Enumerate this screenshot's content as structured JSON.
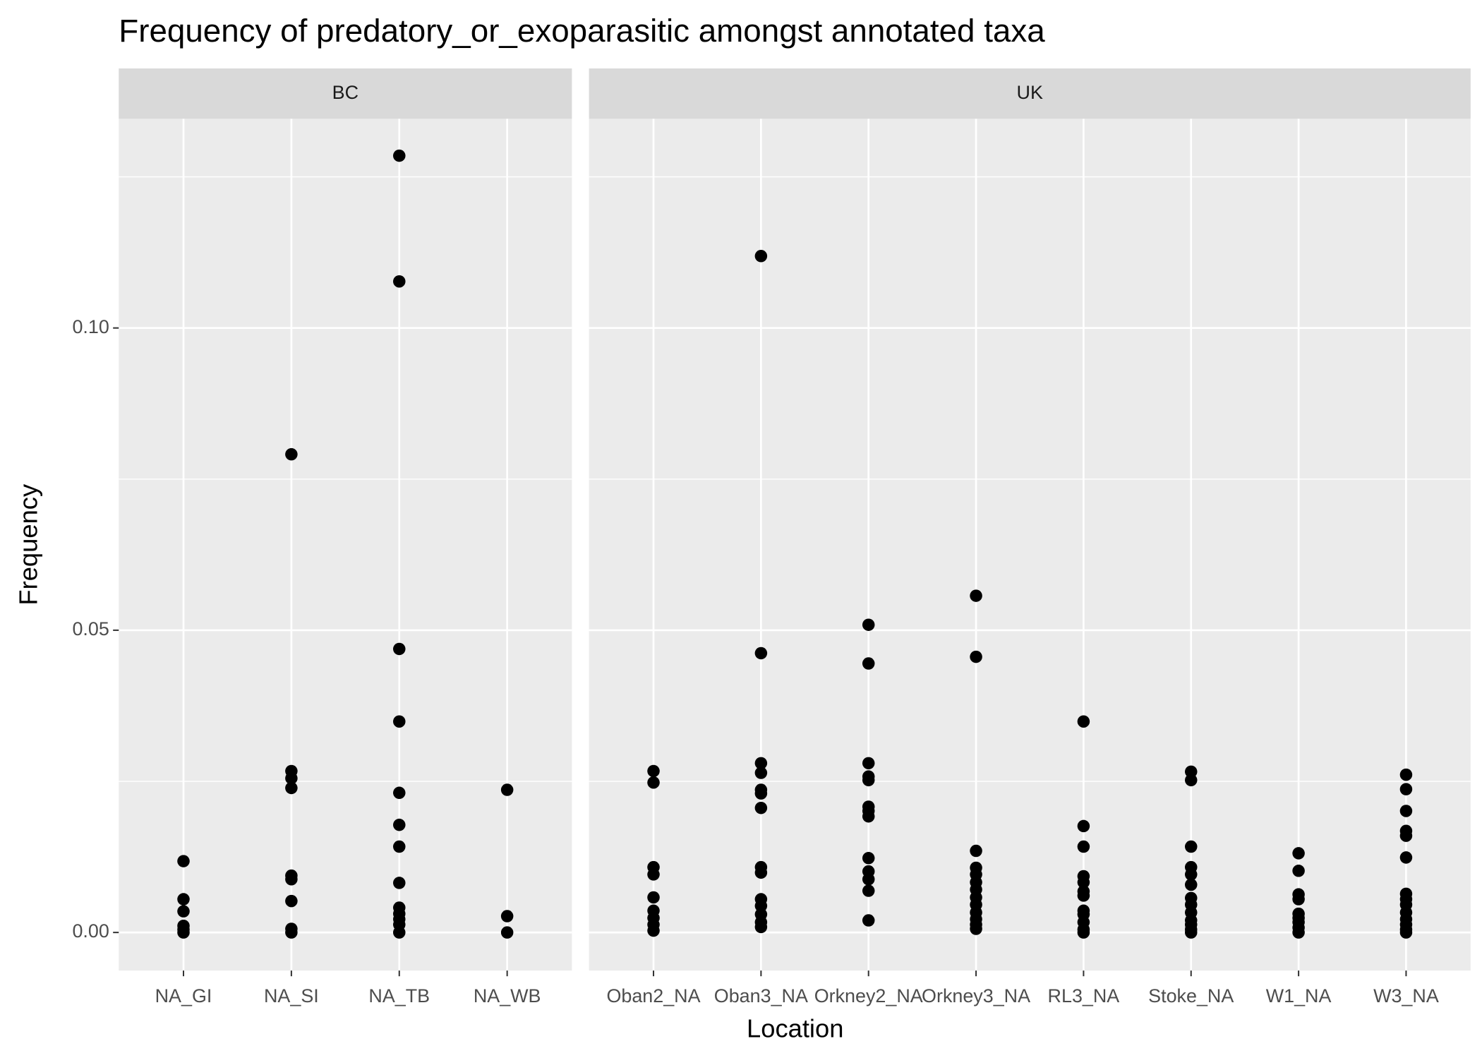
{
  "chart_data": {
    "type": "scatter",
    "title": "Frequency of predatory_or_exoparasitic amongst annotated taxa",
    "xlabel": "Location",
    "ylabel": "Frequency",
    "ylim": [
      -0.0063,
      0.1346
    ],
    "yticks": [
      {
        "value": 0,
        "label": "0.00"
      },
      {
        "value": 0.05,
        "label": "0.05"
      },
      {
        "value": 0.1,
        "label": "0.10"
      }
    ],
    "grid": true,
    "color": "#000000",
    "facets": [
      {
        "name": "BC",
        "categories": [
          "NA_GI",
          "NA_SI",
          "NA_TB",
          "NA_WB"
        ],
        "values": [
          [
            0.0118,
            0.0055,
            0.0035,
            0.0011,
            0.0005,
            0
          ],
          [
            0.0791,
            0.0267,
            0.0255,
            0.0239,
            0.0094,
            0.0088,
            0.0052,
            0.0006,
            0
          ],
          [
            0.1285,
            0.1077,
            0.0469,
            0.0349,
            0.0231,
            0.0178,
            0.0142,
            0.0082,
            0.0041,
            0.0031,
            0.0022,
            0.0013,
            0
          ],
          [
            0.0236,
            0.0027,
            0
          ]
        ]
      },
      {
        "name": "UK",
        "categories": [
          "Oban2_NA",
          "Oban3_NA",
          "Orkney2_NA",
          "Orkney3_NA",
          "RL3_NA",
          "Stoke_NA",
          "W1_NA",
          "W3_NA"
        ],
        "values": [
          [
            0.0267,
            0.0248,
            0.0108,
            0.0096,
            0.0058,
            0.0036,
            0.0024,
            0.0013,
            0.0003
          ],
          [
            0.1119,
            0.0462,
            0.028,
            0.0264,
            0.0236,
            0.023,
            0.0206,
            0.0108,
            0.0099,
            0.0055,
            0.0044,
            0.003,
            0.0017,
            0.0009
          ],
          [
            0.0509,
            0.0445,
            0.028,
            0.0258,
            0.0252,
            0.0208,
            0.0201,
            0.0192,
            0.0123,
            0.0101,
            0.0088,
            0.0069,
            0.002
          ],
          [
            0.0557,
            0.0456,
            0.0135,
            0.0107,
            0.0096,
            0.0083,
            0.0071,
            0.0058,
            0.0046,
            0.0033,
            0.0022,
            0.0013,
            0.0006
          ],
          [
            0.0349,
            0.0176,
            0.0142,
            0.0093,
            0.0083,
            0.0068,
            0.0061,
            0.0036,
            0.003,
            0.0017,
            0.0005,
            0
          ],
          [
            0.0266,
            0.0252,
            0.0142,
            0.0108,
            0.0096,
            0.0079,
            0.0057,
            0.0046,
            0.0033,
            0.002,
            0.0013,
            0.0005,
            0
          ],
          [
            0.0131,
            0.0102,
            0.0063,
            0.0055,
            0.0031,
            0.0024,
            0.0017,
            0.0008,
            0
          ],
          [
            0.0261,
            0.0237,
            0.0201,
            0.0168,
            0.016,
            0.0124,
            0.0064,
            0.0055,
            0.0046,
            0.0033,
            0.0022,
            0.0013,
            0.0005,
            0
          ]
        ]
      }
    ]
  }
}
